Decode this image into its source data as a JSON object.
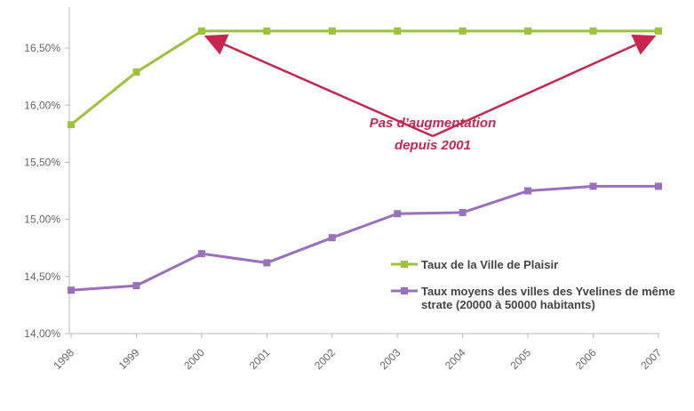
{
  "chart_data": {
    "type": "line",
    "x": [
      "1998",
      "1999",
      "2000",
      "2001",
      "2002",
      "2003",
      "2004",
      "2005",
      "2006",
      "2007"
    ],
    "series": [
      {
        "name": "Taux de la Ville de Plaisir",
        "color": "#9cc33b",
        "values": [
          15.83,
          16.29,
          16.65,
          16.65,
          16.65,
          16.65,
          16.65,
          16.65,
          16.65,
          16.65
        ]
      },
      {
        "name": "Taux moyens des villes des Yvelines de même strate (20000 à 50000 habitants)",
        "color": "#9a70bd",
        "values": [
          14.38,
          14.42,
          14.7,
          14.62,
          14.84,
          15.05,
          15.06,
          15.25,
          15.29,
          15.29
        ]
      }
    ],
    "ylim": [
      14,
      16.75
    ],
    "yticks": [
      {
        "value": 14,
        "label": "14,00%"
      },
      {
        "value": 14.5,
        "label": "14,50%"
      },
      {
        "value": 15,
        "label": "15,00%"
      },
      {
        "value": 15.5,
        "label": "15,50%"
      },
      {
        "value": 16,
        "label": "16,00%"
      },
      {
        "value": 16.5,
        "label": "16,50%"
      }
    ],
    "annotation": [
      "Pas d’augmentation",
      "depuis 2001"
    ],
    "grid": false
  }
}
